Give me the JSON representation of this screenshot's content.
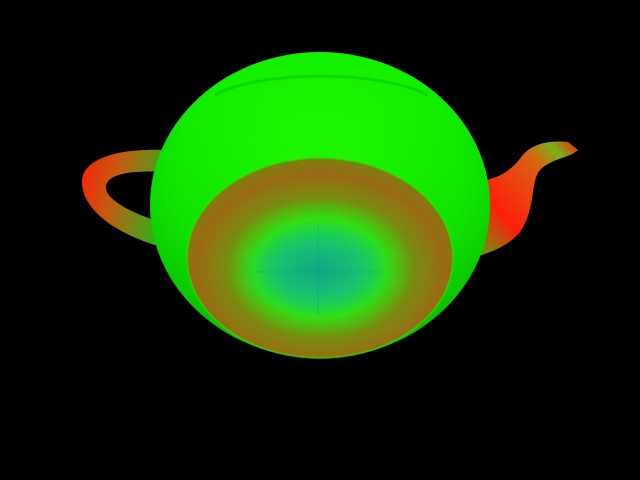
{
  "scene": {
    "subject": "teapot",
    "view": "from below",
    "background_color": "#000000",
    "colors": {
      "body_green": "#12f000",
      "body_green_dark": "#0cd600",
      "base_teal": "#14c07a",
      "mid_olive": "#7a8a10",
      "brown": "#9a6a12",
      "red": "#ff1f0a",
      "handle_green": "#3ea818"
    }
  }
}
